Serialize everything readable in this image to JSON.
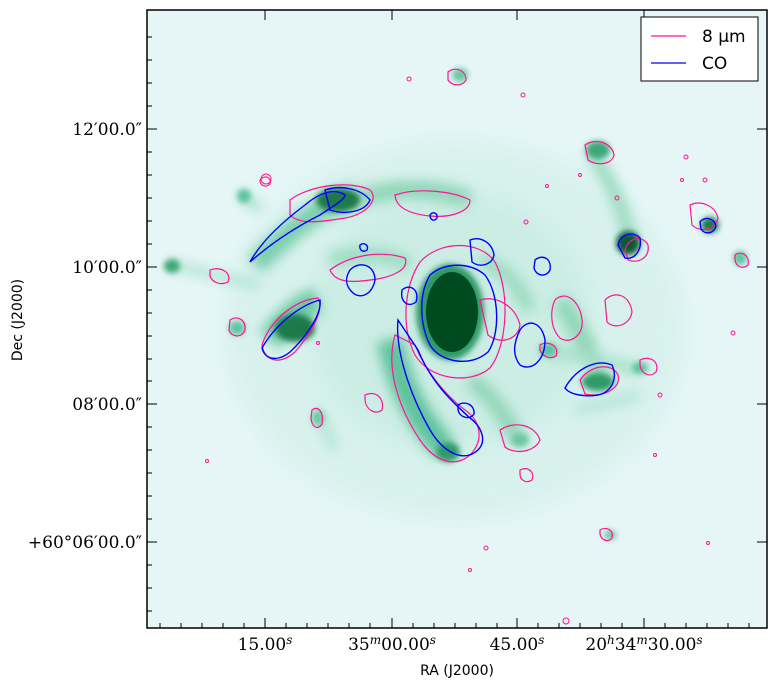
{
  "plot": {
    "xlabel": "RA (J2000)",
    "ylabel": "Dec (J2000)",
    "x_ticks": [
      {
        "label": "15.00",
        "sup": "s"
      },
      {
        "label": "35",
        "sup": "m",
        "label2": "00.00",
        "sup2": "s"
      },
      {
        "label": "45.00",
        "sup": "s"
      },
      {
        "label": "20",
        "sup": "h",
        "label2": "34",
        "sup2": "m",
        "label3": "30.00",
        "sup3": "s"
      }
    ],
    "y_ticks": [
      {
        "label": "12′00.0″"
      },
      {
        "label": "10′00.0″"
      },
      {
        "label": "08′00.0″"
      },
      {
        "label": "+60°06′00.0″"
      }
    ]
  },
  "legend": {
    "position": "top-right",
    "entries": [
      {
        "label": "8 μm",
        "color": "#ff1493"
      },
      {
        "label": "CO",
        "color": "#0000ff"
      }
    ]
  },
  "colors": {
    "background": "#e6f6f7",
    "mid_emission": "#5fc39d",
    "high_emission": "#004a20",
    "contour_8um": "#ff1493",
    "contour_co": "#0000ff"
  }
}
